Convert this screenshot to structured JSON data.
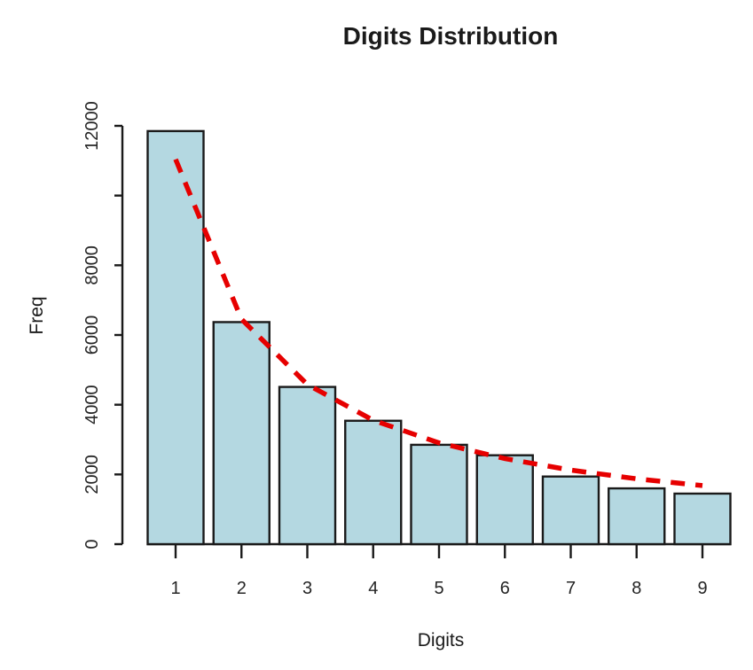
{
  "chart_data": {
    "type": "bar",
    "title": "Digits Distribution",
    "xlabel": "Digits",
    "ylabel": "Freq",
    "categories": [
      "1",
      "2",
      "3",
      "4",
      "5",
      "6",
      "7",
      "8",
      "9"
    ],
    "values": [
      11850,
      6370,
      4510,
      3540,
      2850,
      2550,
      1940,
      1600,
      1450
    ],
    "ylim": [
      0,
      12000
    ],
    "yticks": [
      {
        "value": 0,
        "label": "0"
      },
      {
        "value": 2000,
        "label": "2000"
      },
      {
        "value": 4000,
        "label": "4000"
      },
      {
        "value": 6000,
        "label": "6000"
      },
      {
        "value": 8000,
        "label": "8000"
      },
      {
        "value": 10000,
        "label": ""
      },
      {
        "value": 12000,
        "label": "12000"
      }
    ],
    "grid": false,
    "legend": false,
    "colors": {
      "bar_fill": "#b4d8e1",
      "bar_border": "#1a1a1a",
      "axis": "#1a1a1a",
      "overlay_line": "#e60000"
    },
    "overlay_line": {
      "name": "expected-benford-curve",
      "type": "line",
      "style": "dashed",
      "values": [
        11040,
        6455,
        4580,
        3555,
        2905,
        2455,
        2125,
        1875,
        1680
      ]
    }
  }
}
